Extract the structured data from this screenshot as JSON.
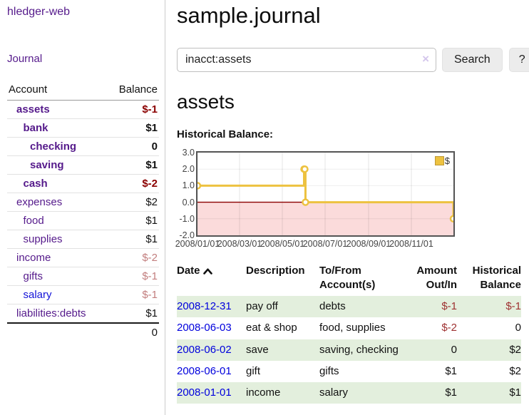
{
  "app": {
    "brand": "hledger-web"
  },
  "nav": {
    "journal": "Journal"
  },
  "sidebar": {
    "columns": {
      "account": "Account",
      "balance": "Balance"
    },
    "accounts": [
      {
        "name": "assets",
        "balance": "$-1",
        "depth": 1,
        "bold": true
      },
      {
        "name": "bank",
        "balance": "$1",
        "depth": 2,
        "bold": true
      },
      {
        "name": "checking",
        "balance": "0",
        "depth": 3,
        "bold": true
      },
      {
        "name": "saving",
        "balance": "$1",
        "depth": 3,
        "bold": true
      },
      {
        "name": "cash",
        "balance": "$-2",
        "depth": 2,
        "bold": true
      },
      {
        "name": "expenses",
        "balance": "$2",
        "depth": 1,
        "bold": false
      },
      {
        "name": "food",
        "balance": "$1",
        "depth": 2,
        "bold": false
      },
      {
        "name": "supplies",
        "balance": "$1",
        "depth": 2,
        "bold": false
      },
      {
        "name": "income",
        "balance": "$-2",
        "depth": 1,
        "bold": false
      },
      {
        "name": "gifts",
        "balance": "$-1",
        "depth": 2,
        "bold": false
      },
      {
        "name": "salary",
        "balance": "$-1",
        "depth": 2,
        "bold": false,
        "blue": true
      },
      {
        "name": "liabilities:debts",
        "balance": "$1",
        "depth": 1,
        "bold": false
      }
    ],
    "total": "0"
  },
  "header": {
    "title": "sample.journal"
  },
  "search": {
    "value": "inacct:assets",
    "clear": "×",
    "button": "Search",
    "help": "?"
  },
  "account_page": {
    "heading": "assets",
    "chart_label": "Historical Balance:"
  },
  "chart_data": {
    "type": "line",
    "step": true,
    "title": "Historical Balance",
    "legend": "$",
    "line_color": "#edc240",
    "negative_region_color": "#fbdbdb",
    "zero_line_color": "#8b0000",
    "ylim": [
      -2,
      3
    ],
    "yticks": [
      "3.0",
      "2.0",
      "1.0",
      "0.0",
      "-1.0",
      "-2.0"
    ],
    "xticks": [
      "2008/01/01",
      "2008/03/01",
      "2008/05/01",
      "2008/07/01",
      "2008/09/01",
      "2008/11/01"
    ],
    "x_domain": [
      "2008/01/01",
      "2008/12/31"
    ],
    "series": [
      {
        "name": "$",
        "points": [
          {
            "x": "2008/01/01",
            "y": 1
          },
          {
            "x": "2008/06/01",
            "y": 2
          },
          {
            "x": "2008/06/02",
            "y": 2
          },
          {
            "x": "2008/06/03",
            "y": 0
          },
          {
            "x": "2008/12/31",
            "y": -1
          }
        ]
      }
    ]
  },
  "register": {
    "headers": {
      "date": "Date",
      "description": "Description",
      "accounts": "To/From Account(s)",
      "amount": "Amount Out/In",
      "balance": "Historical Balance"
    },
    "rows": [
      {
        "date": "2008-12-31",
        "description": "pay off",
        "accounts": "debts",
        "amount": "$-1",
        "balance": "$-1"
      },
      {
        "date": "2008-06-03",
        "description": "eat & shop",
        "accounts": "food, supplies",
        "amount": "$-2",
        "balance": "0"
      },
      {
        "date": "2008-06-02",
        "description": "save",
        "accounts": "saving, checking",
        "amount": "0",
        "balance": "$2"
      },
      {
        "date": "2008-06-01",
        "description": "gift",
        "accounts": "gifts",
        "amount": "$1",
        "balance": "$2"
      },
      {
        "date": "2008-01-01",
        "description": "income",
        "accounts": "salary",
        "amount": "$1",
        "balance": "$1"
      }
    ]
  }
}
